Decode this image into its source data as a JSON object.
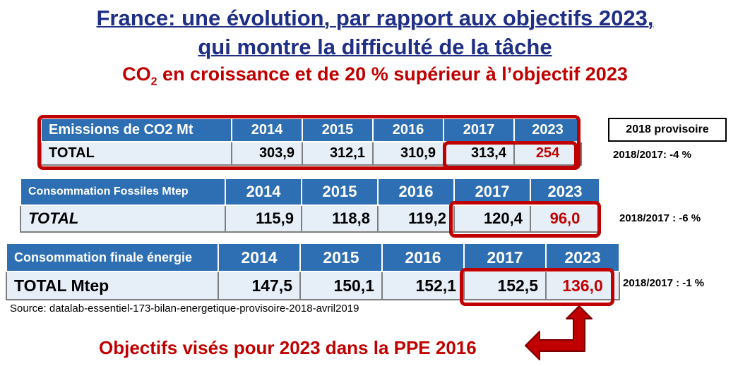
{
  "title": {
    "line1": "France: une évolution, par rapport aux objectifs 2023,",
    "line2": "qui montre la difficulté de la tâche",
    "line3_prefix": "CO",
    "line3_sub": "2",
    "line3_rest": " en croissance et de 20 % supérieur à l’objectif 2023"
  },
  "tables": [
    {
      "header": "Emissions de CO2 Mt",
      "years": [
        "2014",
        "2015",
        "2016",
        "2017",
        "2023"
      ],
      "row_label": "TOTAL",
      "values": [
        "303,9",
        "312,1",
        "310,9",
        "313,4",
        "254"
      ]
    },
    {
      "header": "Consommation Fossiles Mtep",
      "years": [
        "2014",
        "2015",
        "2016",
        "2017",
        "2023"
      ],
      "row_label": "TOTAL",
      "values": [
        "115,9",
        "118,8",
        "119,2",
        "120,4",
        "96,0"
      ]
    },
    {
      "header": "Consommation finale énergie",
      "years": [
        "2014",
        "2015",
        "2016",
        "2017",
        "2023"
      ],
      "row_label": "TOTAL Mtep",
      "values": [
        "147,5",
        "150,1",
        "152,1",
        "152,5",
        "136,0"
      ]
    }
  ],
  "side_notes": {
    "provisoire": "2018 provisoire",
    "note1": "2018/2017: -4 %",
    "note2": "2018/2017 : -6 %",
    "note3": "2018/2017 : -1 %"
  },
  "source": "Source: datalab-essentiel-173-bilan-energetique-provisoire-2018-avril2019",
  "bottom_label": "Objectifs visés pour 2023 dans la PPE 2016",
  "colors": {
    "title_blue": "#1f2f86",
    "accent_red": "#c00000",
    "header_blue": "#2e6fb3",
    "cell_light": "#e6eef8"
  }
}
